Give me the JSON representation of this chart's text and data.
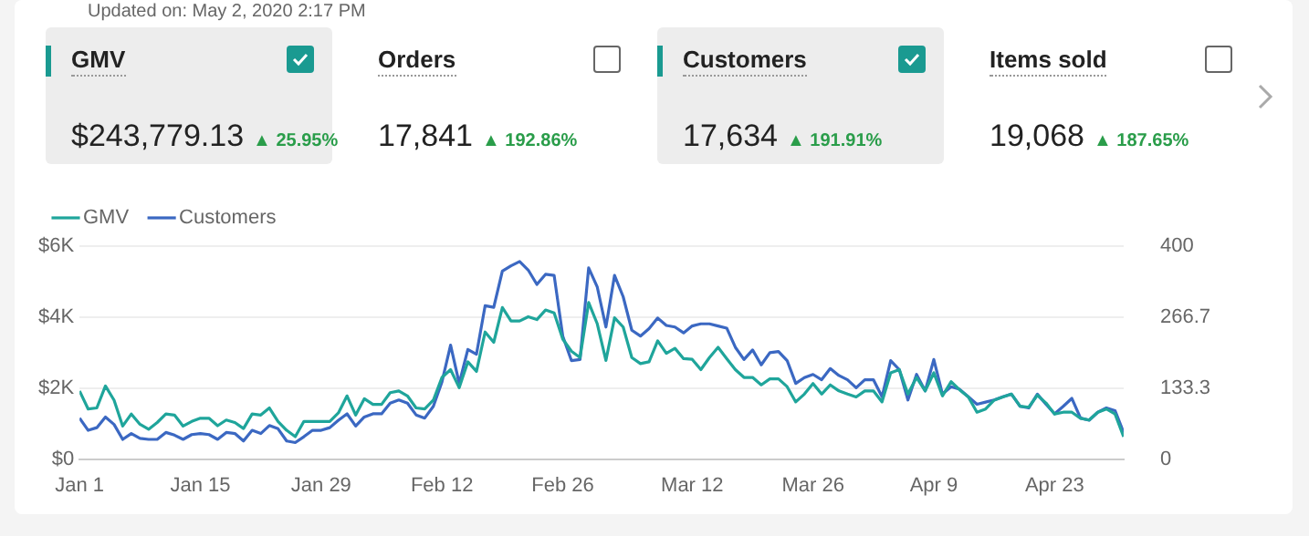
{
  "chart_data": [
    {
      "type": "other",
      "annotations": [
        "Updated on: May 2, 2020 2:17 PM",
        "GMV",
        "$243,779.13",
        "▲ 25.95%",
        "Orders",
        "17,841",
        "▲ 192.86%",
        "Customers",
        "17,634",
        "▲ 191.91%",
        "Items sold",
        "19,068",
        "▲ 187.65%"
      ]
    },
    {
      "type": "line",
      "legend": "top left",
      "grid": "y",
      "marker": "none",
      "line_style": "solid",
      "x": [
        "2020-01-01",
        "2020-01-02",
        "2020-01-03",
        "2020-01-04",
        "2020-01-05",
        "2020-01-06",
        "2020-01-07",
        "2020-01-08",
        "2020-01-09",
        "2020-01-10",
        "2020-01-11",
        "2020-01-12",
        "2020-01-13",
        "2020-01-14",
        "2020-01-15",
        "2020-01-16",
        "2020-01-17",
        "2020-01-18",
        "2020-01-19",
        "2020-01-20",
        "2020-01-21",
        "2020-01-22",
        "2020-01-23",
        "2020-01-24",
        "2020-01-25",
        "2020-01-26",
        "2020-01-27",
        "2020-01-28",
        "2020-01-29",
        "2020-01-30",
        "2020-01-31",
        "2020-02-01",
        "2020-02-02",
        "2020-02-03",
        "2020-02-04",
        "2020-02-05",
        "2020-02-06",
        "2020-02-07",
        "2020-02-08",
        "2020-02-09",
        "2020-02-10",
        "2020-02-11",
        "2020-02-12",
        "2020-02-13",
        "2020-02-14",
        "2020-02-15",
        "2020-02-16",
        "2020-02-17",
        "2020-02-18",
        "2020-02-19",
        "2020-02-20",
        "2020-02-21",
        "2020-02-22",
        "2020-02-23",
        "2020-02-24",
        "2020-02-25",
        "2020-02-26",
        "2020-02-27",
        "2020-02-28",
        "2020-02-29",
        "2020-03-01",
        "2020-03-02",
        "2020-03-03",
        "2020-03-04",
        "2020-03-05",
        "2020-03-06",
        "2020-03-07",
        "2020-03-08",
        "2020-03-09",
        "2020-03-10",
        "2020-03-11",
        "2020-03-12",
        "2020-03-13",
        "2020-03-14",
        "2020-03-15",
        "2020-03-16",
        "2020-03-17",
        "2020-03-18",
        "2020-03-19",
        "2020-03-20",
        "2020-03-21",
        "2020-03-22",
        "2020-03-23",
        "2020-03-24",
        "2020-03-25",
        "2020-03-26",
        "2020-03-27",
        "2020-03-28",
        "2020-03-29",
        "2020-03-30",
        "2020-03-31",
        "2020-04-01",
        "2020-04-02",
        "2020-04-03",
        "2020-04-04",
        "2020-04-05",
        "2020-04-06",
        "2020-04-07",
        "2020-04-08",
        "2020-04-09",
        "2020-04-10",
        "2020-04-11",
        "2020-04-12",
        "2020-04-13",
        "2020-04-14",
        "2020-04-15",
        "2020-04-16",
        "2020-04-17",
        "2020-04-18",
        "2020-04-19",
        "2020-04-20",
        "2020-04-21",
        "2020-04-22",
        "2020-04-23",
        "2020-04-24",
        "2020-04-25",
        "2020-04-26",
        "2020-04-27",
        "2020-04-28",
        "2020-04-29",
        "2020-04-30",
        "2020-05-01"
      ],
      "xlim": [
        "2020-01-01",
        "2020-05-01"
      ],
      "xticks": [
        {
          "value": "2020-01-01",
          "label": "Jan 1"
        },
        {
          "value": "2020-01-15",
          "label": "Jan 15"
        },
        {
          "value": "2020-01-29",
          "label": "Jan 29"
        },
        {
          "value": "2020-02-12",
          "label": "Feb 12"
        },
        {
          "value": "2020-02-26",
          "label": "Feb 26"
        },
        {
          "value": "2020-03-12",
          "label": "Mar 12"
        },
        {
          "value": "2020-03-26",
          "label": "Mar 26"
        },
        {
          "value": "2020-04-09",
          "label": "Apr 9"
        },
        {
          "value": "2020-04-23",
          "label": "Apr 23"
        }
      ],
      "ylim": [
        0,
        6000
      ],
      "yticks": [
        {
          "value": 0,
          "label": "$0"
        },
        {
          "value": 2000,
          "label": "$2K"
        },
        {
          "value": 4000,
          "label": "$4K"
        },
        {
          "value": 6000,
          "label": "$6K"
        }
      ],
      "y2lim": [
        0,
        400
      ],
      "y2ticks": [
        0,
        133.3,
        266.7,
        400
      ],
      "series": [
        {
          "name": "GMV",
          "color": "#1fa59b",
          "values": [
            1920,
            1410,
            1440,
            2060,
            1660,
            930,
            1270,
            980,
            840,
            1030,
            1270,
            1240,
            930,
            1060,
            1150,
            1150,
            940,
            1100,
            1030,
            860,
            1270,
            1240,
            1440,
            1060,
            810,
            630,
            1060,
            1060,
            1060,
            1060,
            1300,
            1780,
            1240,
            1700,
            1540,
            1540,
            1870,
            1920,
            1780,
            1440,
            1410,
            1660,
            2300,
            2520,
            2010,
            2740,
            2470,
            3580,
            3290,
            4270,
            3890,
            3890,
            4010,
            3930,
            4200,
            4120,
            3380,
            3040,
            2860,
            4410,
            3810,
            2780,
            3980,
            3720,
            2860,
            2690,
            2740,
            3330,
            2980,
            3120,
            2830,
            2810,
            2520,
            2860,
            3150,
            2830,
            2520,
            2300,
            2300,
            2090,
            2260,
            2260,
            2040,
            1610,
            1830,
            2130,
            1830,
            2090,
            1920,
            1830,
            1750,
            1920,
            1920,
            1610,
            2430,
            2520,
            1830,
            2300,
            1920,
            2430,
            1780,
            2180,
            1950,
            1750,
            1320,
            1410,
            1660,
            1750,
            1830,
            1490,
            1460,
            1800,
            1580,
            1270,
            1320,
            1320,
            1150,
            1100,
            1320,
            1410,
            1270,
            630
          ]
        },
        {
          "name": "Customers",
          "color": "#3b68c2",
          "axis": "y2",
          "values": [
            77,
            54,
            59,
            79,
            65,
            37,
            48,
            39,
            37,
            37,
            50,
            45,
            37,
            46,
            48,
            46,
            37,
            50,
            48,
            34,
            54,
            48,
            63,
            57,
            34,
            31,
            42,
            54,
            54,
            59,
            73,
            85,
            62,
            79,
            85,
            85,
            105,
            111,
            105,
            83,
            77,
            99,
            145,
            214,
            142,
            206,
            197,
            288,
            285,
            353,
            363,
            371,
            355,
            328,
            347,
            345,
            231,
            185,
            187,
            359,
            323,
            248,
            345,
            305,
            242,
            231,
            245,
            265,
            251,
            248,
            237,
            250,
            254,
            254,
            250,
            246,
            210,
            187,
            205,
            177,
            200,
            202,
            185,
            142,
            153,
            159,
            149,
            170,
            157,
            149,
            134,
            149,
            149,
            117,
            185,
            168,
            111,
            159,
            128,
            187,
            122,
            136,
            131,
            117,
            103,
            107,
            111,
            117,
            122,
            99,
            96,
            122,
            103,
            85,
            99,
            114,
            77,
            73,
            88,
            96,
            91,
            50
          ]
        }
      ]
    }
  ]
}
